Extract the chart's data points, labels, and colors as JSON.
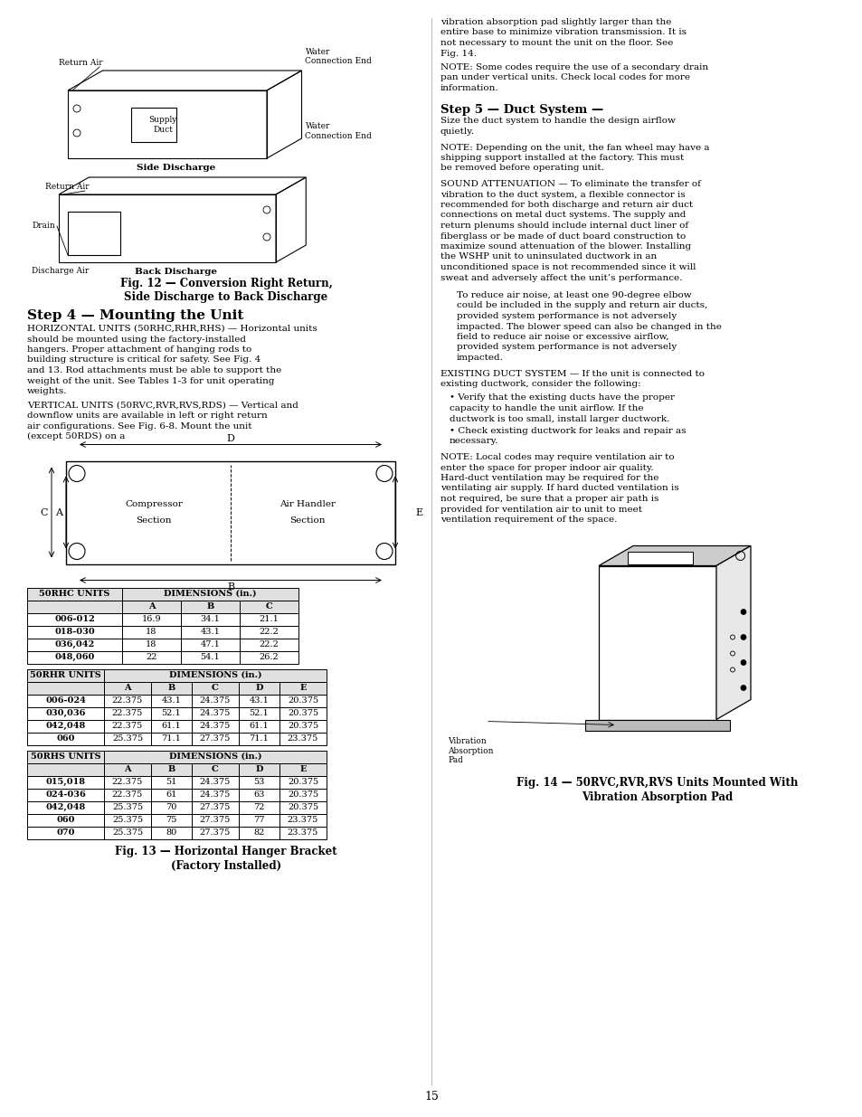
{
  "bg_color": "#ffffff",
  "page_number": "15",
  "fig12_caption": "Fig. 12 — Conversion Right Return,\nSide Discharge to Back Discharge",
  "step4_title": "Step 4 — Mounting the Unit",
  "step4_para1": "HORIZONTAL UNITS (50RHC,RHR,RHS) — Horizontal units should be mounted using the factory-installed hangers. Proper attachment of hanging rods to building structure is critical for safety. See Fig. 4 and 13. Rod attachments must be able to support the weight of the unit. See Tables 1-3 for unit operating weights.",
  "step4_para2": "VERTICAL UNITS (50RVC,RVR,RVS,RDS) — Vertical and downflow units are available in left or right return air configurations. See Fig. 6-8. Mount the unit (except 50RDS) on a",
  "fig13_caption": "Fig. 13 — Horizontal Hanger Bracket\n(Factory Installed)",
  "step5_title": "Step 5 — Duct System —",
  "step5_intro": "Size the duct system to handle the design airflow quietly.",
  "step5_note1": "NOTE: Depending on the unit, the fan wheel may have a shipping support installed at the factory. This must be removed before operating unit.",
  "step5_sound": "SOUND ATTENUATION — To eliminate the transfer of vibration to the duct system, a flexible connector is recommended for both discharge and return air duct connections on metal duct systems. The supply and return plenums should include internal duct liner of fiberglass or be made of duct board construction to maximize sound attenuation of the blower. Installing the WSHP unit to uninsulated ductwork in an unconditioned space is not recommended since it will sweat and adversely affect the unit’s performance.",
  "step5_para2": "To reduce air noise, at least one 90-degree elbow could be included in the supply and return air ducts, provided system performance is not adversely impacted. The blower speed can also be changed in the field to reduce air noise or excessive airflow, provided system performance is not adversely impacted.",
  "step5_existing": "EXISTING DUCT SYSTEM — If the unit is connected to existing ductwork, consider the following:",
  "step5_bullet1": "•  Verify that the existing ducts have the proper capacity to handle the unit airflow. If the ductwork is too small, install larger ductwork.",
  "step5_bullet2": "•  Check existing ductwork for leaks and repair as necessary.",
  "step5_note2": "NOTE: Local codes may require ventilation air to enter the space for proper indoor air quality. Hard-duct ventilation may be required for the ventilating air supply. If hard ducted ventilation is not required, be sure that a proper air path is provided for ventilation air to unit to meet ventilation requirement of the space.",
  "right_top_para": "vibration absorption pad slightly larger than the entire base to minimize vibration transmission. It is not necessary to mount the unit on the floor. See Fig. 14.",
  "right_note1": "NOTE: Some codes require the use of a secondary drain pan under vertical units. Check local codes for more information.",
  "fig14_caption": "Fig. 14 — 50RVC,RVR,RVS Units Mounted With\nVibration Absorption Pad",
  "fig14_sublabel": "Vibration\nAbsorption\nPad",
  "rhc_table": {
    "title": "50RHC UNITS",
    "dim_header": "DIMENSIONS (in.)",
    "cols": [
      "A",
      "B",
      "C"
    ],
    "rows": [
      {
        "unit": "006-012",
        "A": "16.9",
        "B": "34.1",
        "C": "21.1"
      },
      {
        "unit": "018-030",
        "A": "18",
        "B": "43.1",
        "C": "22.2"
      },
      {
        "unit": "036,042",
        "A": "18",
        "B": "47.1",
        "C": "22.2"
      },
      {
        "unit": "048,060",
        "A": "22",
        "B": "54.1",
        "C": "26.2"
      }
    ]
  },
  "rhr_table": {
    "title": "50RHR UNITS",
    "dim_header": "DIMENSIONS (in.)",
    "cols": [
      "A",
      "B",
      "C",
      "D",
      "E"
    ],
    "rows": [
      {
        "unit": "006-024",
        "A": "22.375",
        "B": "43.1",
        "C": "24.375",
        "D": "43.1",
        "E": "20.375"
      },
      {
        "unit": "030,036",
        "A": "22.375",
        "B": "52.1",
        "C": "24.375",
        "D": "52.1",
        "E": "20.375"
      },
      {
        "unit": "042,048",
        "A": "22.375",
        "B": "61.1",
        "C": "24.375",
        "D": "61.1",
        "E": "20.375"
      },
      {
        "unit": "060",
        "A": "25.375",
        "B": "71.1",
        "C": "27.375",
        "D": "71.1",
        "E": "23.375"
      }
    ]
  },
  "rhs_table": {
    "title": "50RHS UNITS",
    "dim_header": "DIMENSIONS (in.)",
    "cols": [
      "A",
      "B",
      "C",
      "D",
      "E"
    ],
    "rows": [
      {
        "unit": "015,018",
        "A": "22.375",
        "B": "51",
        "C": "24.375",
        "D": "53",
        "E": "20.375"
      },
      {
        "unit": "024-036",
        "A": "22.375",
        "B": "61",
        "C": "24.375",
        "D": "63",
        "E": "20.375"
      },
      {
        "unit": "042,048",
        "A": "25.375",
        "B": "70",
        "C": "27.375",
        "D": "72",
        "E": "20.375"
      },
      {
        "unit": "060",
        "A": "25.375",
        "B": "75",
        "C": "27.375",
        "D": "77",
        "E": "23.375"
      },
      {
        "unit": "070",
        "A": "25.375",
        "B": "80",
        "C": "27.375",
        "D": "82",
        "E": "23.375"
      }
    ]
  }
}
